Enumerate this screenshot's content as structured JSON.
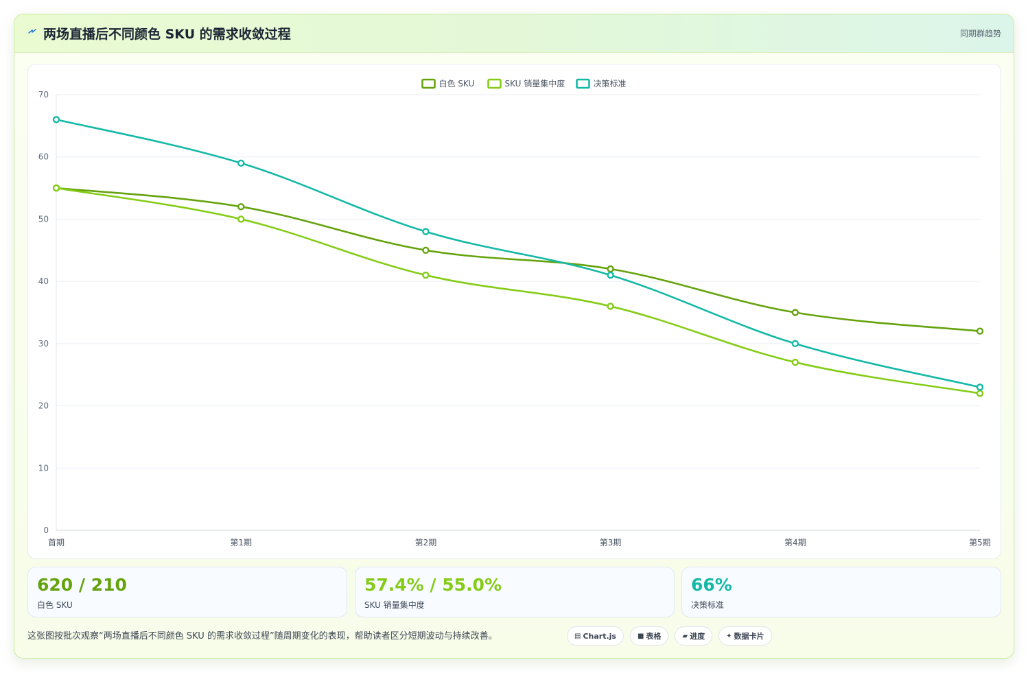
{
  "header": {
    "icon": "lightning-icon",
    "title": "两场直播后不同颜色 SKU 的需求收敛过程",
    "tag": "同期群趋势"
  },
  "chart_data": {
    "type": "line",
    "categories": [
      "首期",
      "第1期",
      "第2期",
      "第3期",
      "第4期",
      "第5期"
    ],
    "ylim": [
      0,
      70
    ],
    "yticks": [
      0,
      10,
      20,
      30,
      40,
      50,
      60,
      70
    ],
    "grid": true,
    "legend_position": "top-center",
    "smooth": true,
    "series": [
      {
        "name": "白色 SKU",
        "color": "#65a30d",
        "values": [
          55,
          52,
          45,
          42,
          35,
          32
        ]
      },
      {
        "name": "SKU 销量集中度",
        "color": "#84cc16",
        "values": [
          55,
          50,
          41,
          36,
          27,
          22
        ]
      },
      {
        "name": "决策标准",
        "color": "#14b8a6",
        "values": [
          66,
          59,
          48,
          41,
          30,
          23
        ]
      }
    ]
  },
  "stats": [
    {
      "value": "620 / 210",
      "label": "白色 SKU",
      "color": "#65a30d"
    },
    {
      "value": "57.4% / 55.0%",
      "label": "SKU 销量集中度",
      "color": "#84cc16"
    },
    {
      "value": "66%",
      "label": "决策标准",
      "color": "#14b8a6"
    }
  ],
  "caption": "这张图按批次观察“两场直播后不同颜色 SKU 的需求收敛过程”随周期变化的表现，帮助读者区分短期波动与持续改善。",
  "chips": [
    {
      "icon": "chart-icon",
      "glyph": "▤",
      "label": "Chart.js"
    },
    {
      "icon": "table-icon",
      "glyph": "■",
      "label": "表格"
    },
    {
      "icon": "progress-icon",
      "glyph": "▰",
      "label": "进度"
    },
    {
      "icon": "sparkle-icon",
      "glyph": "✦",
      "label": "数据卡片"
    }
  ]
}
